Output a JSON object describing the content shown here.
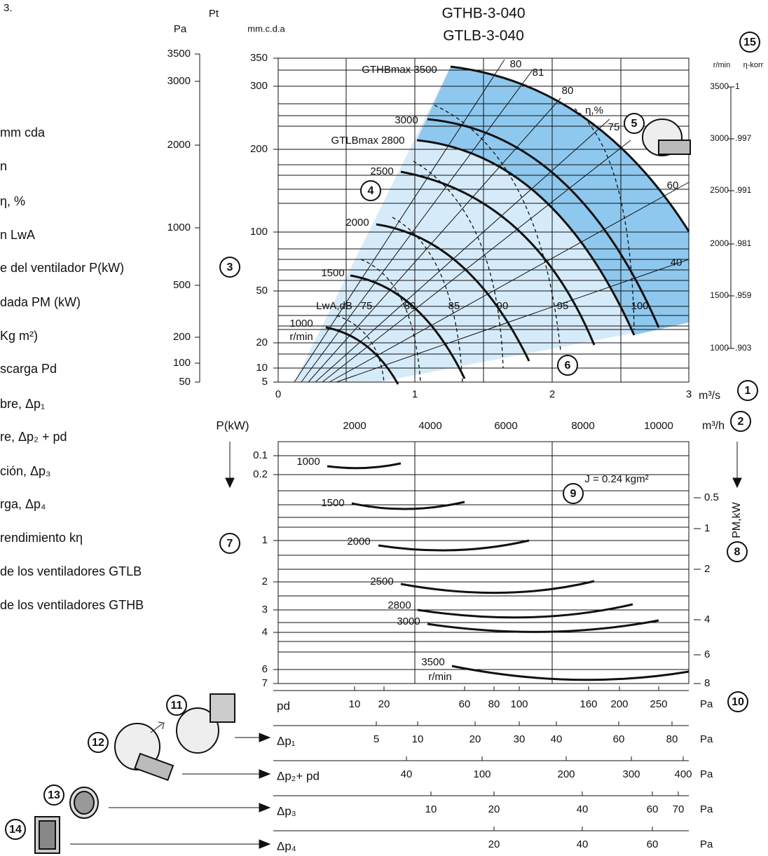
{
  "intro_text": "3.",
  "left_list": [
    "mm cda",
    "n",
    "η, %",
    "n LwA",
    "e del ventilador P(kW)",
    "dada PM (kW)",
    "Kg m²)",
    "scarga Pd",
    "bre, Δp₁",
    "re, Δp₂ + pd",
    "ción, Δp₃",
    "rga, Δp₄",
    " rendimiento kη",
    "de los ventiladores GTLB",
    "de los ventiladores GTHB"
  ],
  "header": {
    "title_1": "GTHB-3-040",
    "title_2": "GTLB-3-040"
  },
  "pressure_axis": {
    "unit_pa": "Pa",
    "unit_pt": "Pt",
    "unit_mm": "mm.c.d.a",
    "pa_ticks": [
      "3500",
      "3000",
      "2000",
      "1000",
      "500",
      "200",
      "100",
      "50"
    ],
    "mm_ticks": [
      "350",
      "300",
      "200",
      "100",
      "50",
      "20",
      "10",
      "5"
    ]
  },
  "flow_axis": {
    "ticks": [
      "0",
      "1",
      "2",
      "3"
    ],
    "unit": "m³/s"
  },
  "curve_labels": [
    "GTHBmax 3500",
    "3000",
    "GTLBmax 2800",
    "2500",
    "2000",
    "1500",
    "1000",
    "r/min"
  ],
  "efficiency_labels": [
    "80",
    "81",
    "80",
    "η,%",
    "75",
    "60",
    "40"
  ],
  "sound_labels": [
    "LwA,dB",
    "75",
    "80",
    "85",
    "90",
    "95",
    "100"
  ],
  "speed_scale": {
    "header_rpm": "r/min",
    "header_eta": "η-korr",
    "rows": [
      [
        "3500",
        "1"
      ],
      [
        "3000",
        ".997"
      ],
      [
        "2500",
        ".991"
      ],
      [
        "2000",
        ".981"
      ],
      [
        "1500",
        ".959"
      ],
      [
        "1000",
        ".903"
      ]
    ]
  },
  "power_chart": {
    "axis_title": "P(kW)",
    "flow_unit": "m³/h",
    "flow_ticks": [
      "2000",
      "4000",
      "6000",
      "8000",
      "10000"
    ],
    "p_ticks": [
      "0.1",
      "0.2",
      "1",
      "2",
      "3",
      "4",
      "6",
      "7"
    ],
    "pm_title": "PM,kW",
    "pm_ticks": [
      "0.5",
      "1",
      "2",
      "4",
      "6",
      "8"
    ],
    "curve_labels": [
      "1000",
      "1500",
      "2000",
      "2500",
      "2800",
      "3000",
      "3500",
      "r/min"
    ],
    "inertia": "J = 0.24 kgm²"
  },
  "pressure_scales": [
    {
      "label": "pd",
      "ticks": [
        "10",
        "20",
        "60",
        "80",
        "100",
        "160",
        "200",
        "250"
      ],
      "unit": "Pa"
    },
    {
      "label": "Δp₁",
      "ticks": [
        "5",
        "10",
        "20",
        "30",
        "40",
        "60",
        "80"
      ],
      "unit": "Pa"
    },
    {
      "label": "Δp₂+ pd",
      "ticks": [
        "40",
        "100",
        "200",
        "300",
        "400"
      ],
      "unit": "Pa"
    },
    {
      "label": "Δp₃",
      "ticks": [
        "10",
        "20",
        "40",
        "60",
        "70"
      ],
      "unit": "Pa"
    },
    {
      "label": "Δp₄",
      "ticks": [
        "20",
        "40",
        "60"
      ],
      "unit": "Pa"
    }
  ],
  "callouts": [
    "1",
    "2",
    "3",
    "4",
    "5",
    "6",
    "7",
    "8",
    "9",
    "10",
    "11",
    "12",
    "13",
    "14",
    "15"
  ]
}
